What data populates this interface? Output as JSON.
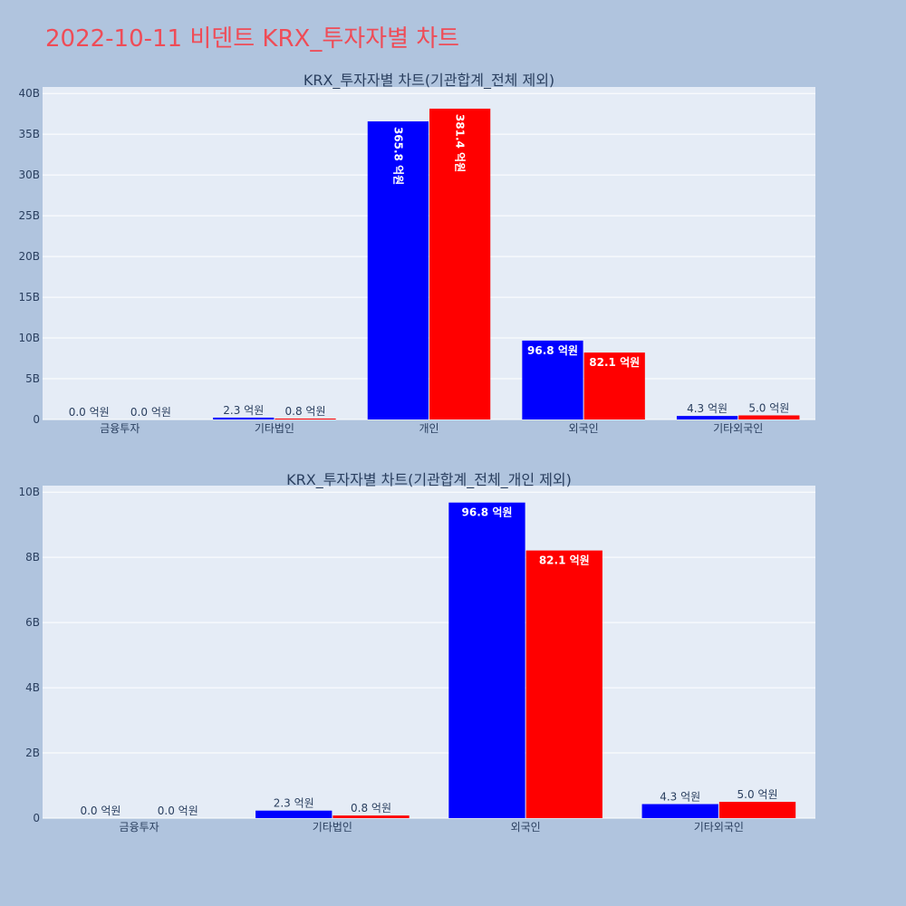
{
  "page_title": "2022-10-11 비덴트 KRX_투자자별 차트",
  "colors": {
    "title": "#ef4c57",
    "series_a": "#0000ff",
    "series_b": "#ff0000",
    "plot_bg": "#e5ecf6",
    "page_bg": "#b0c4de",
    "text": "#2a3f5f"
  },
  "chart_data": [
    {
      "type": "bar",
      "title": "KRX_투자자별 차트(기관합계_전체 제외)",
      "categories": [
        "금융투자",
        "기타법인",
        "개인",
        "외국인",
        "기타외국인"
      ],
      "series": [
        {
          "color": "#0000ff",
          "values": [
            0,
            230000000,
            36580000000,
            9680000000,
            430000000
          ],
          "labels": [
            "0.0 억원",
            "2.3 억원",
            "365.8 억원",
            "96.8 억원",
            "4.3 억원"
          ]
        },
        {
          "color": "#ff0000",
          "values": [
            0,
            80000000,
            38140000000,
            8210000000,
            500000000
          ],
          "labels": [
            "0.0 억원",
            "0.8 억원",
            "381.4 억원",
            "82.1 억원",
            "5.0 억원"
          ]
        }
      ],
      "ylim": [
        0,
        40800000000
      ],
      "yticks": [
        0,
        5000000000,
        10000000000,
        15000000000,
        20000000000,
        25000000000,
        30000000000,
        35000000000,
        40000000000
      ],
      "ytick_labels": [
        "0",
        "5B",
        "10B",
        "15B",
        "20B",
        "25B",
        "30B",
        "35B",
        "40B"
      ],
      "grid": true
    },
    {
      "type": "bar",
      "title": "KRX_투자자별 차트(기관합계_전체_개인 제외)",
      "categories": [
        "금융투자",
        "기타법인",
        "외국인",
        "기타외국인"
      ],
      "series": [
        {
          "color": "#0000ff",
          "values": [
            0,
            230000000,
            9680000000,
            430000000
          ],
          "labels": [
            "0.0 억원",
            "2.3 억원",
            "96.8 억원",
            "4.3 억원"
          ]
        },
        {
          "color": "#ff0000",
          "values": [
            0,
            80000000,
            8210000000,
            500000000
          ],
          "labels": [
            "0.0 억원",
            "0.8 억원",
            "82.1 억원",
            "5.0 억원"
          ]
        }
      ],
      "ylim": [
        0,
        10200000000
      ],
      "yticks": [
        0,
        2000000000,
        4000000000,
        6000000000,
        8000000000,
        10000000000
      ],
      "ytick_labels": [
        "0",
        "2B",
        "4B",
        "6B",
        "8B",
        "10B"
      ],
      "grid": true
    }
  ]
}
